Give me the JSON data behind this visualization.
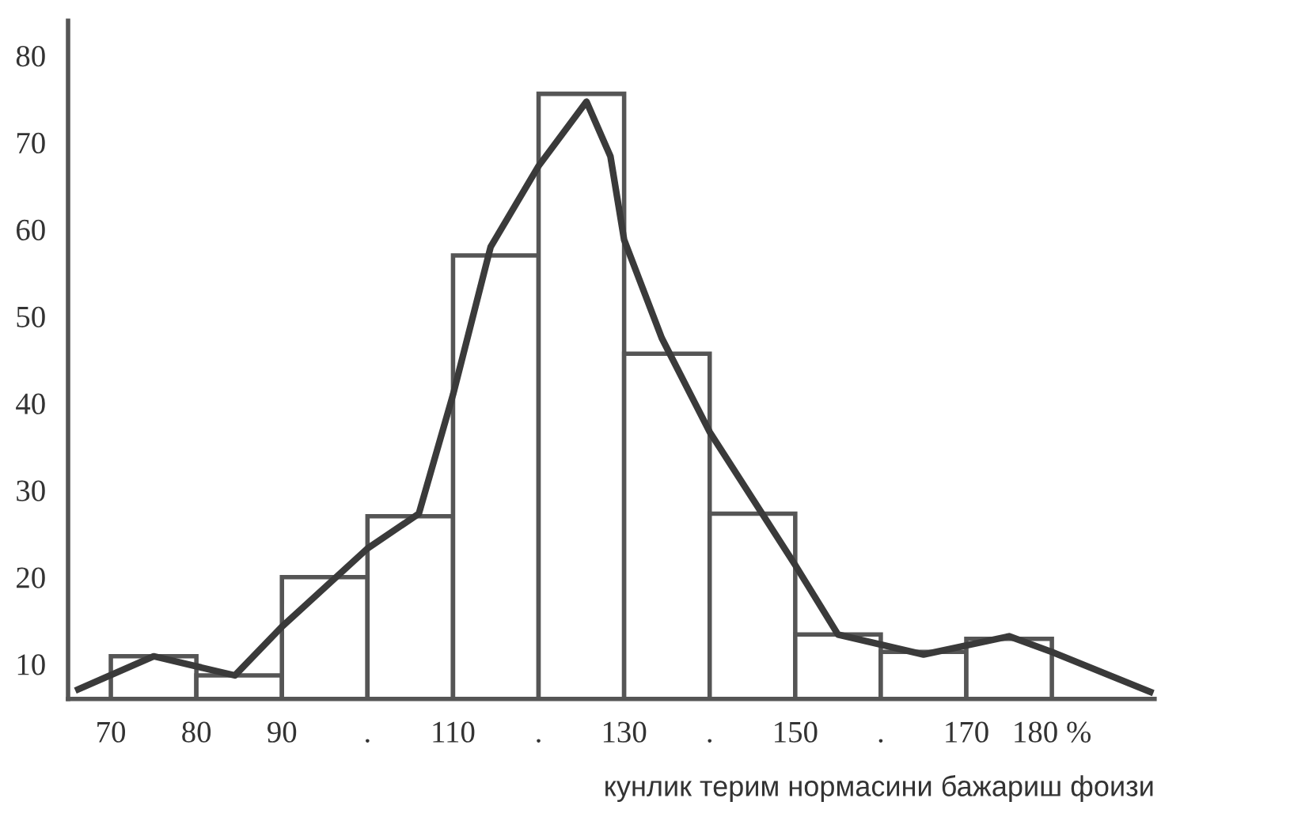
{
  "chart_data": {
    "type": "histogram",
    "xlabel": "кунлик терим нормасини бажариш фоизи",
    "bins": [
      70,
      80,
      90,
      100,
      110,
      120,
      130,
      140,
      150,
      160,
      170,
      180
    ],
    "values": [
      10.9,
      8.7,
      20,
      27,
      57,
      75.6,
      45.7,
      27.3,
      13.4,
      11.4,
      12.9
    ],
    "color": "#555555",
    "series": [
      {
        "type": "line",
        "color": "#3a3a3a",
        "x": [
          66.2,
          75,
          84.5,
          90,
          100,
          106,
          110,
          114.4,
          120,
          125.6,
          128.4,
          130,
          134.4,
          140,
          150,
          155,
          165,
          175,
          180,
          191.5
        ],
        "values": [
          7.1,
          10.9,
          8.7,
          14.3,
          23.3,
          27.3,
          41,
          58,
          67.3,
          74.7,
          68.4,
          58.8,
          47.5,
          36.7,
          21.4,
          13.4,
          11.1,
          13.2,
          11.4,
          6.8
        ]
      }
    ],
    "xlim": [
      65,
      192
    ],
    "ylim": [
      6,
      84
    ],
    "xticks": [
      70,
      80,
      90,
      {
        "value": 100,
        "label": "."
      },
      110,
      {
        "value": 120,
        "label": "."
      },
      130,
      {
        "value": 140,
        "label": "."
      },
      150,
      {
        "value": 160,
        "label": "."
      },
      170,
      {
        "value": 180,
        "label": "180 %"
      }
    ],
    "yticks": [
      10,
      20,
      30,
      40,
      50,
      60,
      70,
      80
    ],
    "grid": false,
    "legend": false
  }
}
